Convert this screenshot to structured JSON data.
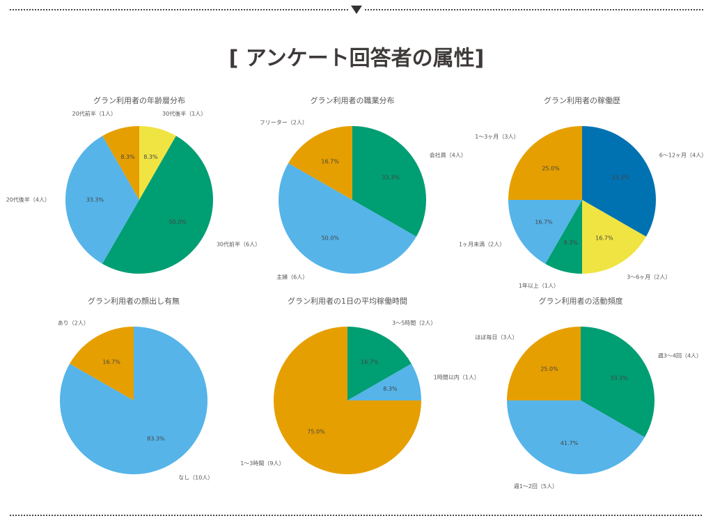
{
  "title": "[ アンケート回答者の属性]",
  "chart_data": [
    {
      "type": "pie",
      "title": "グラン利用者の年齢層分布",
      "categories": [
        "30代後半（1人）",
        "30代前半（6人）",
        "20代後半（4人）",
        "20代前半（1人）"
      ],
      "values": [
        8.3,
        50.0,
        33.3,
        8.3
      ],
      "value_labels": [
        "8.3%",
        "50.0%",
        "33.3%",
        "8.3%"
      ],
      "colors": [
        "#f0e442",
        "#009e73",
        "#56b4e9",
        "#e69f00"
      ]
    },
    {
      "type": "pie",
      "title": "グラン利用者の職業分布",
      "categories": [
        "会社員（4人）",
        "主婦（6人）",
        "フリーター（2人）"
      ],
      "values": [
        33.3,
        50.0,
        16.7
      ],
      "value_labels": [
        "33.3%",
        "50.0%",
        "16.7%"
      ],
      "colors": [
        "#009e73",
        "#56b4e9",
        "#e69f00"
      ]
    },
    {
      "type": "pie",
      "title": "グラン利用者の稼働歴",
      "categories": [
        "6〜12ヶ月（4人）",
        "3〜6ヶ月（2人）",
        "1年以上（1人）",
        "1ヶ月未満（2人）",
        "1〜3ヶ月（3人）"
      ],
      "values": [
        33.3,
        16.7,
        8.3,
        16.7,
        25.0
      ],
      "value_labels": [
        "33.3%",
        "16.7%",
        "8.3%",
        "16.7%",
        "25.0%"
      ],
      "colors": [
        "#0072b2",
        "#f0e442",
        "#009e73",
        "#56b4e9",
        "#e69f00"
      ]
    },
    {
      "type": "pie",
      "title": "グラン利用者の顔出し有無",
      "categories": [
        "なし（10人）",
        "あり（2人）"
      ],
      "values": [
        83.3,
        16.7
      ],
      "value_labels": [
        "83.3%",
        "16.7%"
      ],
      "colors": [
        "#56b4e9",
        "#e69f00"
      ]
    },
    {
      "type": "pie",
      "title": "グラン利用者の1日の平均稼働時間",
      "categories": [
        "3〜5時間（2人）",
        "1時間以内（1人）",
        "1〜3時間（9人）"
      ],
      "values": [
        16.7,
        8.3,
        75.0
      ],
      "value_labels": [
        "16.7%",
        "8.3%",
        "75.0%"
      ],
      "colors": [
        "#009e73",
        "#56b4e9",
        "#e69f00"
      ]
    },
    {
      "type": "pie",
      "title": "グラン利用者の活動頻度",
      "categories": [
        "週3〜4回（4人）",
        "週1〜2回（5人）",
        "ほぼ毎日（3人）"
      ],
      "values": [
        33.3,
        41.7,
        25.0
      ],
      "value_labels": [
        "33.3%",
        "41.7%",
        "25.0%"
      ],
      "colors": [
        "#009e73",
        "#56b4e9",
        "#e69f00"
      ]
    }
  ]
}
